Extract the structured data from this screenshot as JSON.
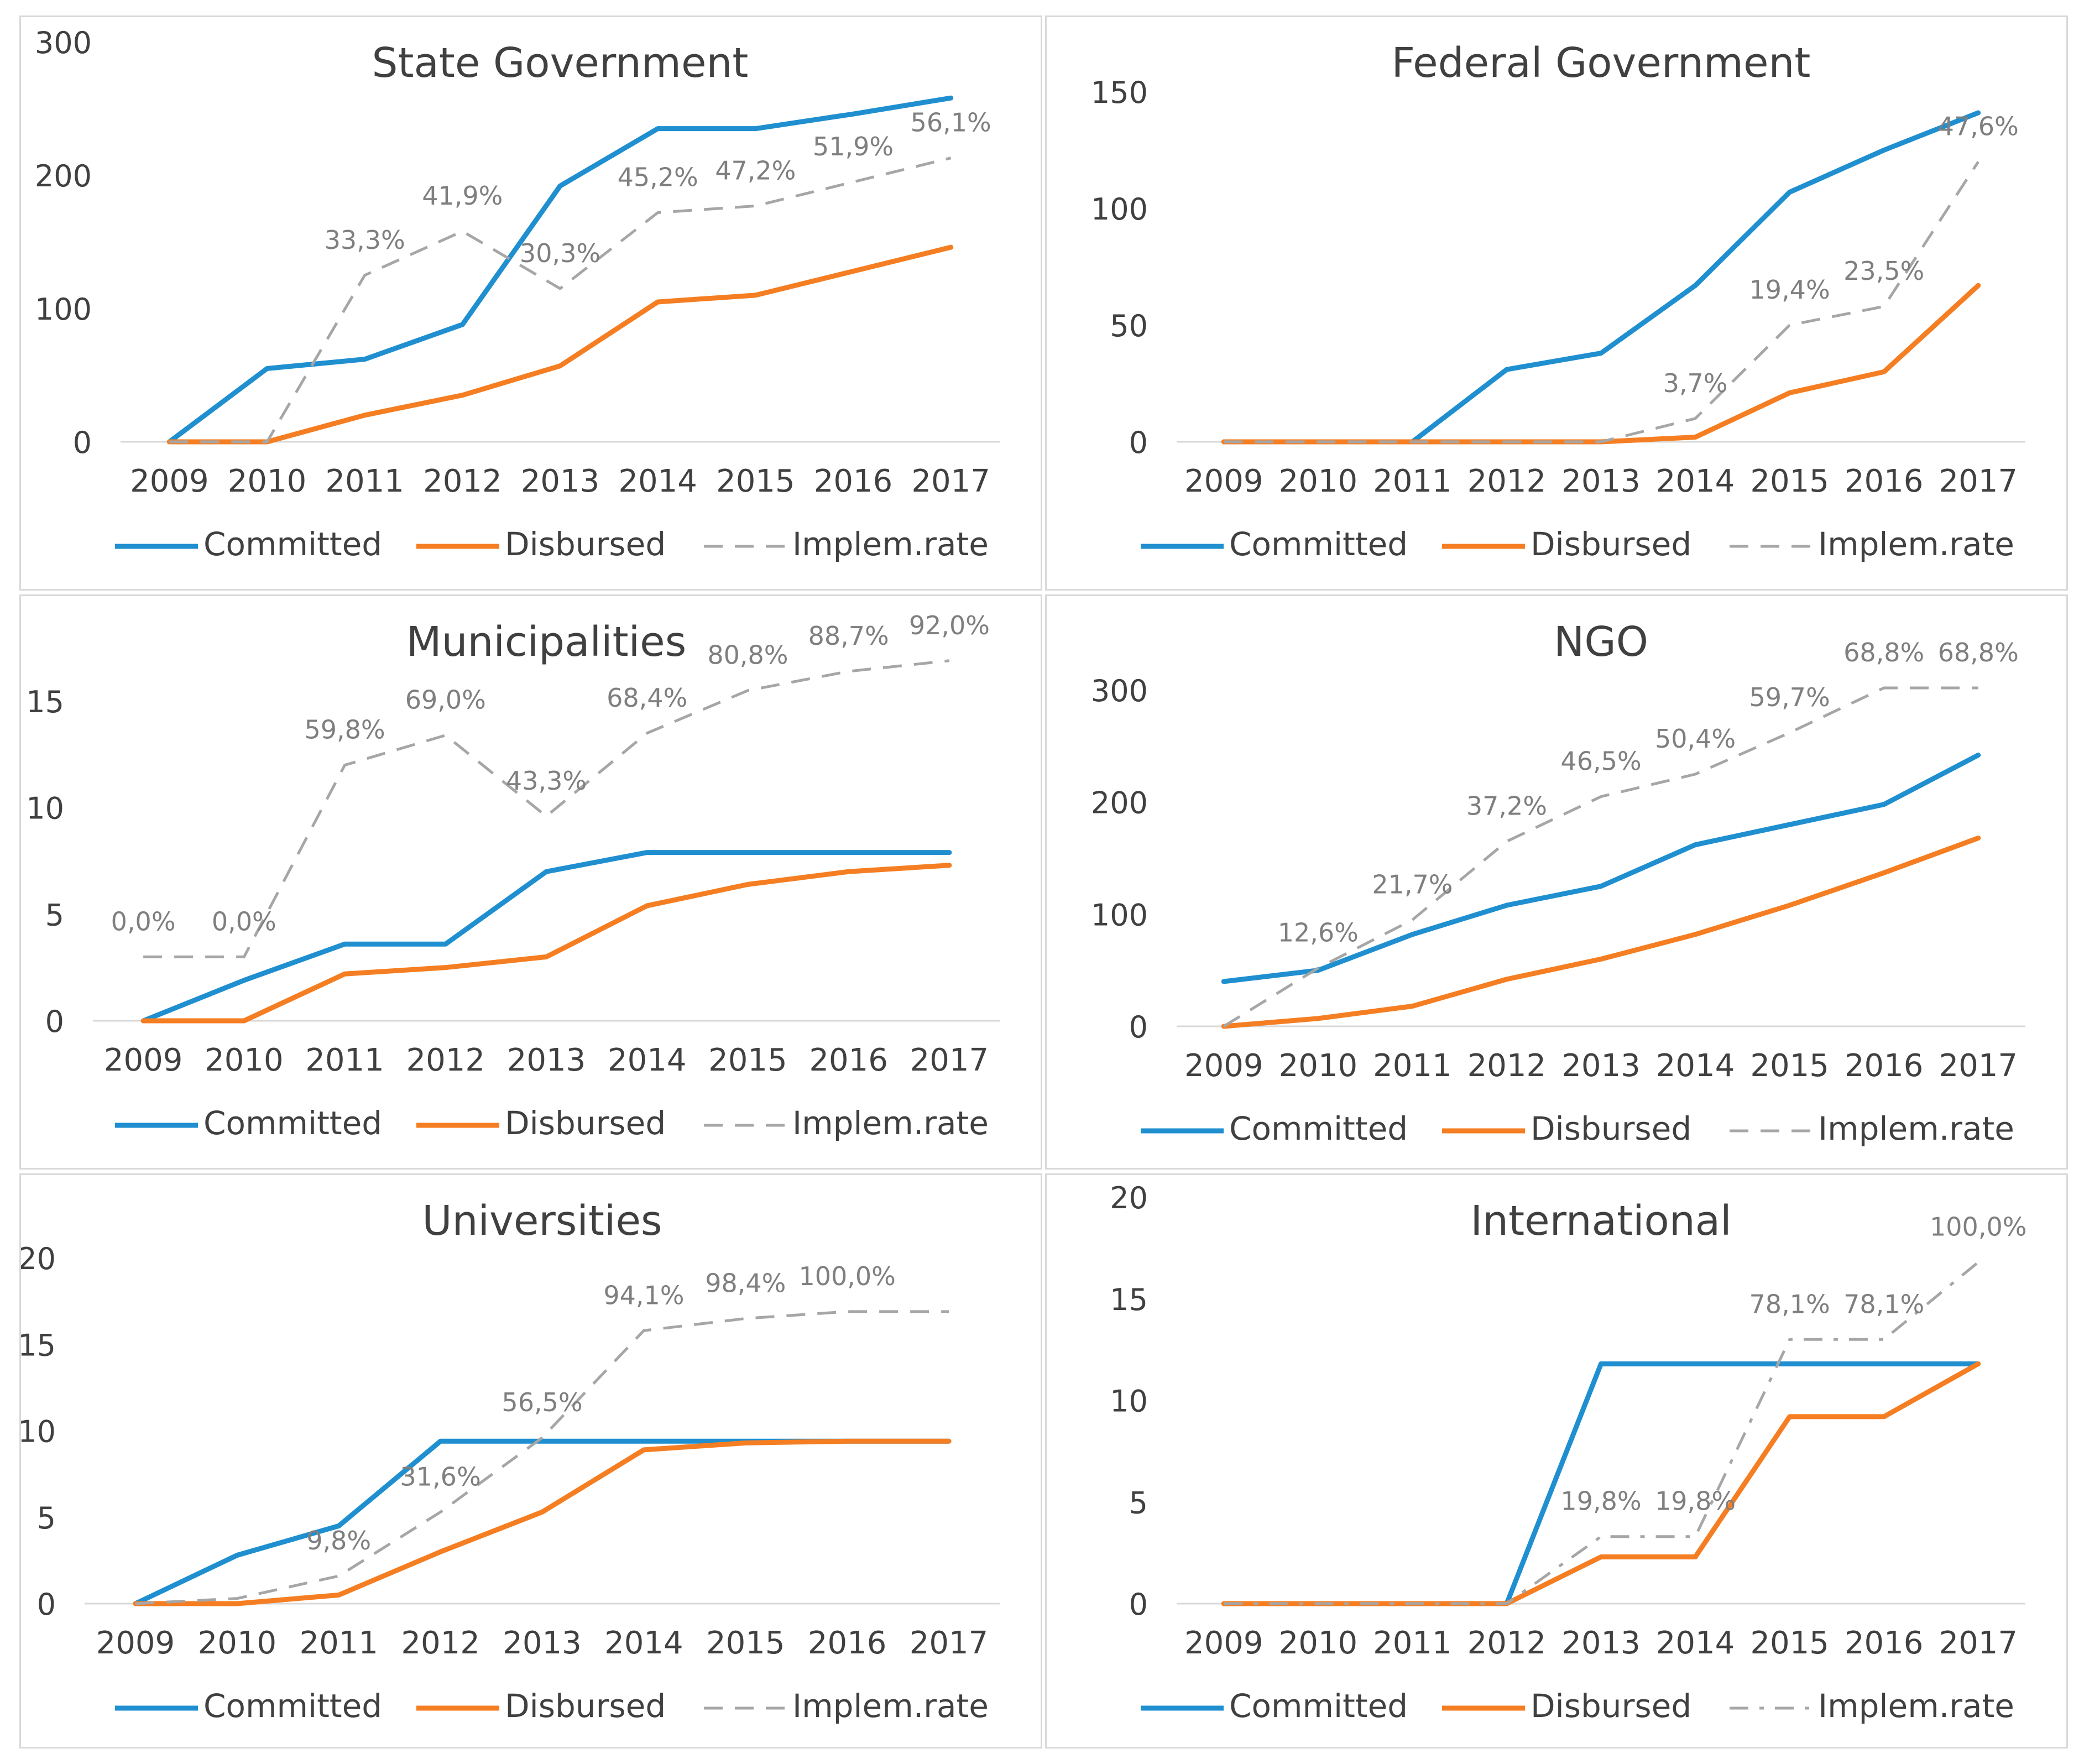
{
  "chart_data": [
    {
      "type": "line",
      "title": "State Government",
      "categories": [
        "2009",
        "2010",
        "2011",
        "2012",
        "2013",
        "2014",
        "2015",
        "2016",
        "2017"
      ],
      "ylim": [
        0,
        300
      ],
      "yticks": [
        "0",
        "100",
        "200",
        "300"
      ],
      "rate_style": "dash",
      "series": [
        {
          "name": "Committed",
          "color": "#1f8fd0",
          "values": [
            0,
            55,
            62,
            88,
            192,
            235,
            235,
            246,
            258
          ]
        },
        {
          "name": "Disbursed",
          "color": "#f57e22",
          "values": [
            0,
            0,
            20,
            35,
            57,
            105,
            110,
            128,
            146
          ]
        },
        {
          "name": "Implem.rate",
          "color": "#a6a6a6",
          "values": [
            0,
            0,
            125,
            158,
            115,
            172,
            177,
            195,
            213
          ],
          "labels": [
            "",
            "",
            "33,3%",
            "41,9%",
            "30,3%",
            "45,2%",
            "47,2%",
            "51,9%",
            "56,1%"
          ]
        }
      ]
    },
    {
      "type": "line",
      "title": "Federal Government",
      "categories": [
        "2009",
        "2010",
        "2011",
        "2012",
        "2013",
        "2014",
        "2015",
        "2016",
        "2017"
      ],
      "ylim": [
        0,
        150
      ],
      "yticks": [
        "0",
        "50",
        "100",
        "150"
      ],
      "rate_style": "dash",
      "series": [
        {
          "name": "Committed",
          "color": "#1f8fd0",
          "values": [
            0,
            0,
            0,
            31,
            38,
            67,
            107,
            125,
            141
          ]
        },
        {
          "name": "Disbursed",
          "color": "#f57e22",
          "values": [
            0,
            0,
            0,
            0,
            0,
            2,
            21,
            30,
            67
          ]
        },
        {
          "name": "Implem.rate",
          "color": "#a6a6a6",
          "values": [
            0,
            0,
            0,
            0,
            0,
            10,
            50,
            58,
            120
          ],
          "labels": [
            "",
            "",
            "",
            "",
            "",
            "3,7%",
            "19,4%",
            "23,5%",
            "47,6%"
          ]
        }
      ]
    },
    {
      "type": "line",
      "title": "Municipalities",
      "categories": [
        "2009",
        "2010",
        "2011",
        "2012",
        "2013",
        "2014",
        "2015",
        "2016",
        "2017"
      ],
      "ylim": [
        0,
        15
      ],
      "yticks": [
        "0",
        "5",
        "10",
        "15"
      ],
      "rate_style": "dash",
      "series": [
        {
          "name": "Committed",
          "color": "#1f8fd0",
          "values": [
            0,
            1.9,
            3.6,
            3.6,
            7,
            7.9,
            7.9,
            7.9,
            7.9
          ]
        },
        {
          "name": "Disbursed",
          "color": "#f57e22",
          "values": [
            0,
            0,
            2.2,
            2.5,
            3,
            5.4,
            6.4,
            7,
            7.3
          ]
        },
        {
          "name": "Implem.rate",
          "color": "#a6a6a6",
          "values": [
            3,
            3,
            12,
            13.4,
            9.6,
            13.5,
            15.5,
            16.4,
            16.9
          ],
          "labels": [
            "0,0%",
            "0,0%",
            "59,8%",
            "69,0%",
            "43,3%",
            "68,4%",
            "80,8%",
            "88,7%",
            "92,0%"
          ]
        }
      ]
    },
    {
      "type": "line",
      "title": "NGO",
      "categories": [
        "2009",
        "2010",
        "2011",
        "2012",
        "2013",
        "2014",
        "2015",
        "2016",
        "2017"
      ],
      "ylim": [
        0,
        300
      ],
      "yticks": [
        "0",
        "100",
        "200",
        "300"
      ],
      "rate_style": "dash",
      "series": [
        {
          "name": "Committed",
          "color": "#1f8fd0",
          "values": [
            40,
            50,
            82,
            108,
            125,
            162,
            180,
            198,
            242
          ]
        },
        {
          "name": "Disbursed",
          "color": "#f57e22",
          "values": [
            0,
            7,
            18,
            42,
            60,
            82,
            108,
            137,
            168
          ]
        },
        {
          "name": "Implem.rate",
          "color": "#a6a6a6",
          "values": [
            0,
            52,
            95,
            165,
            205,
            225,
            262,
            302,
            302
          ],
          "labels": [
            "",
            "12,6%",
            "21,7%",
            "37,2%",
            "46,5%",
            "50,4%",
            "59,7%",
            "68,8%",
            "68,8%"
          ]
        }
      ]
    },
    {
      "type": "line",
      "title": "Universities",
      "categories": [
        "2009",
        "2010",
        "2011",
        "2012",
        "2013",
        "2014",
        "2015",
        "2016",
        "2017"
      ],
      "ylim": [
        0,
        20
      ],
      "yticks": [
        "0",
        "5",
        "10",
        "15",
        "20"
      ],
      "rate_style": "dash",
      "series": [
        {
          "name": "Committed",
          "color": "#1f8fd0",
          "values": [
            0,
            2.8,
            4.5,
            9.4,
            9.4,
            9.4,
            9.4,
            9.4,
            9.4
          ]
        },
        {
          "name": "Disbursed",
          "color": "#f57e22",
          "values": [
            0,
            0,
            0.5,
            3,
            5.3,
            8.9,
            9.3,
            9.4,
            9.4
          ]
        },
        {
          "name": "Implem.rate",
          "color": "#a6a6a6",
          "values": [
            0,
            0.3,
            1.6,
            5.3,
            9.6,
            15.8,
            16.5,
            16.9,
            16.9
          ],
          "labels": [
            "",
            "",
            "9,8%",
            "31,6%",
            "56,5%",
            "94,1%",
            "98,4%",
            "100,0%",
            ""
          ]
        }
      ]
    },
    {
      "type": "line",
      "title": "International",
      "categories": [
        "2009",
        "2010",
        "2011",
        "2012",
        "2013",
        "2014",
        "2015",
        "2016",
        "2017"
      ],
      "ylim": [
        0,
        20
      ],
      "yticks": [
        "0",
        "5",
        "10",
        "15",
        "20"
      ],
      "rate_style": "dashdot",
      "series": [
        {
          "name": "Committed",
          "color": "#1f8fd0",
          "values": [
            0,
            0,
            0,
            0,
            11.8,
            11.8,
            11.8,
            11.8,
            11.8
          ]
        },
        {
          "name": "Disbursed",
          "color": "#f57e22",
          "values": [
            0,
            0,
            0,
            0,
            2.3,
            2.3,
            9.2,
            9.2,
            11.8
          ]
        },
        {
          "name": "Implem.rate",
          "color": "#a6a6a6",
          "values": [
            0,
            0,
            0,
            0,
            3.3,
            3.3,
            13,
            13,
            16.8
          ],
          "labels": [
            "",
            "",
            "",
            "",
            "19,8%",
            "19,8%",
            "78,1%",
            "78,1%",
            "100,0%"
          ]
        }
      ]
    }
  ]
}
